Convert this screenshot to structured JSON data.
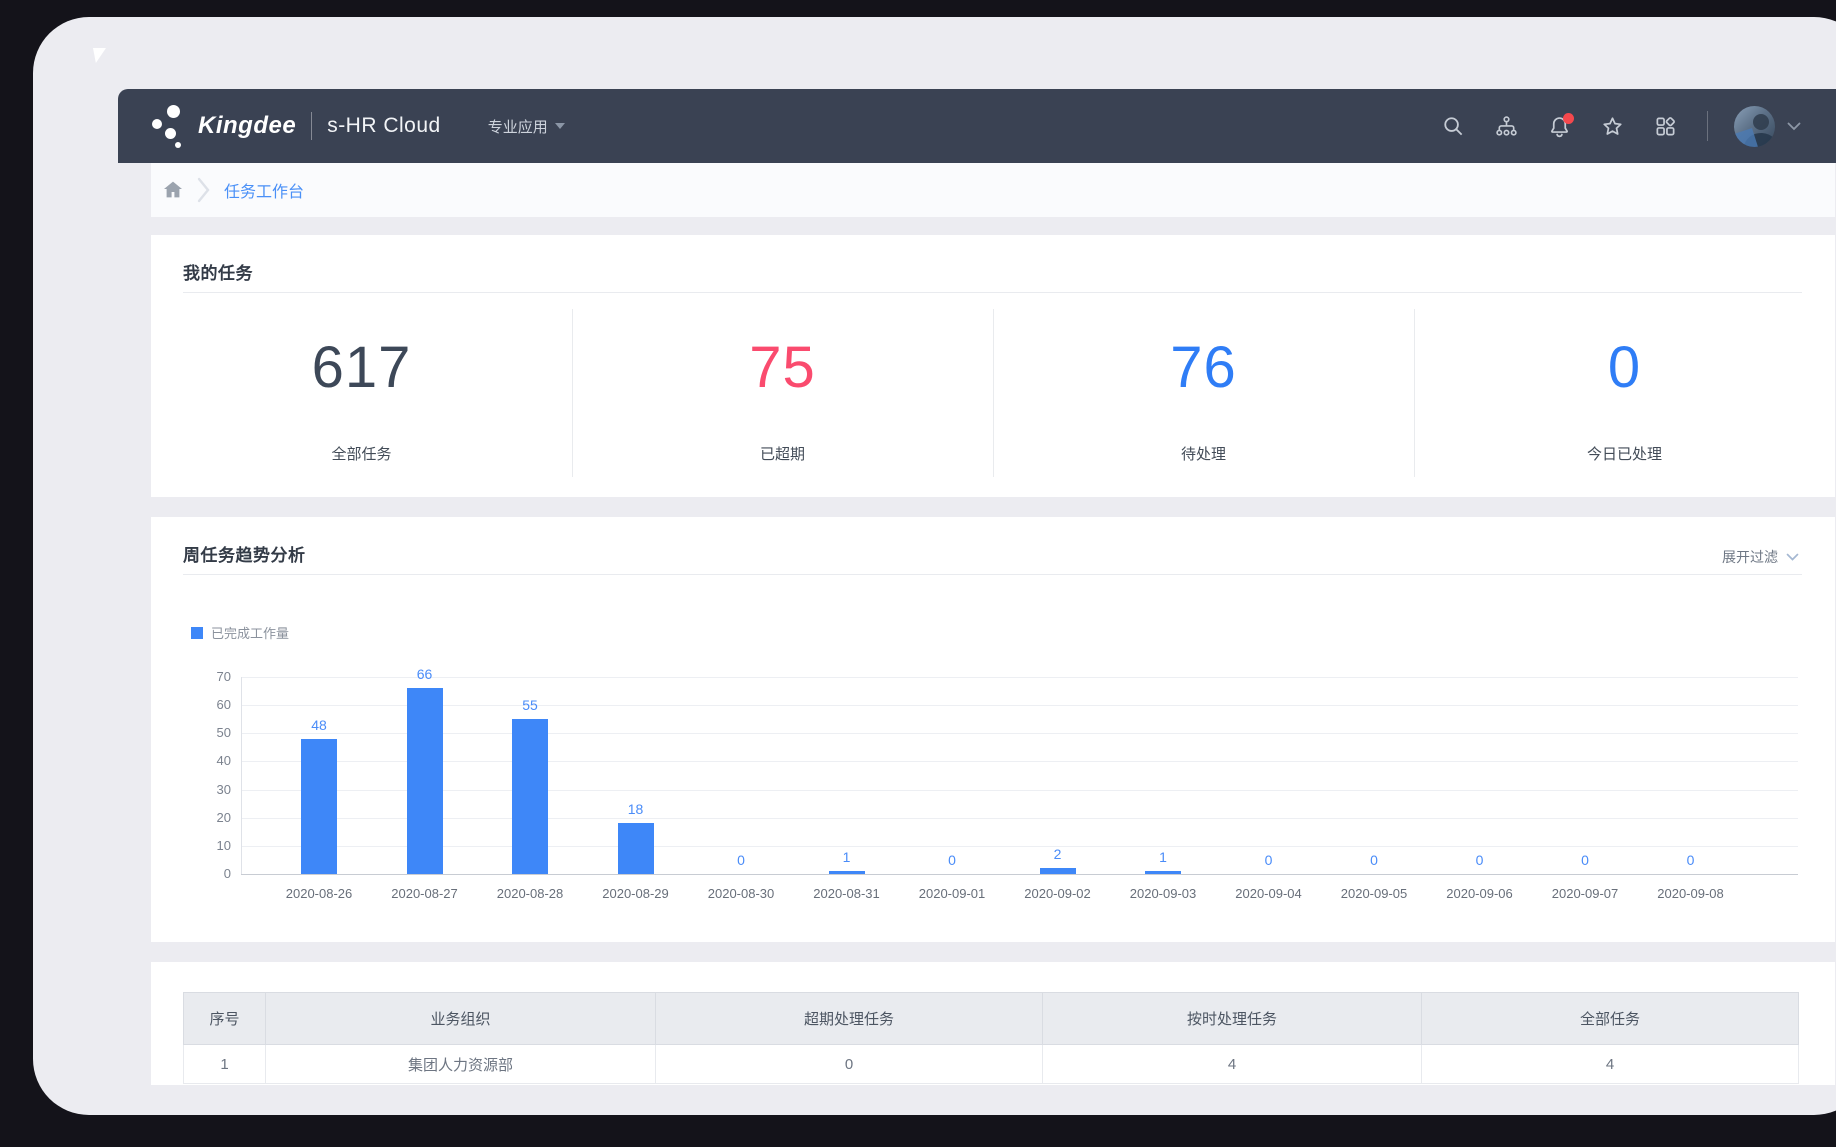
{
  "navbar": {
    "brand": "Kingdee",
    "product": "s-HR Cloud",
    "menu_label": "专业应用",
    "icons": [
      "search",
      "org-chart",
      "notifications",
      "favorites",
      "app-launcher"
    ],
    "notification_badge_color": "#f5484d",
    "bg_color": "#3a4253"
  },
  "breadcrumb": {
    "home_icon": "home",
    "current": "任务工作台",
    "link_color": "#4a90f7"
  },
  "my_tasks": {
    "title": "我的任务",
    "stats": [
      {
        "value": "617",
        "label": "全部任务",
        "color": "#3d4858"
      },
      {
        "value": "75",
        "label": "已超期",
        "color": "#fa4b6e"
      },
      {
        "value": "76",
        "label": "待处理",
        "color": "#2f7df6"
      },
      {
        "value": "0",
        "label": "今日已处理",
        "color": "#2f7df6"
      }
    ]
  },
  "trend_section": {
    "title": "周任务趋势分析",
    "filter_label": "展开过滤"
  },
  "chart_data": {
    "type": "bar",
    "title": "周任务趋势分析",
    "legend": [
      "已完成工作量"
    ],
    "legend_position": "top-left",
    "categories": [
      "2020-08-26",
      "2020-08-27",
      "2020-08-28",
      "2020-08-29",
      "2020-08-30",
      "2020-08-31",
      "2020-09-01",
      "2020-09-02",
      "2020-09-03",
      "2020-09-04",
      "2020-09-05",
      "2020-09-06",
      "2020-09-07",
      "2020-09-08"
    ],
    "values": [
      48,
      66,
      55,
      18,
      0,
      1,
      0,
      2,
      1,
      0,
      0,
      0,
      0,
      0
    ],
    "xlabel": "",
    "ylabel": "",
    "ylim": [
      0,
      70
    ],
    "yticks": [
      0,
      10,
      20,
      30,
      40,
      50,
      60,
      70
    ],
    "grid": true,
    "bar_color": "#3e87f8",
    "value_label_color": "#4a8cf8"
  },
  "org_table": {
    "headers": [
      "序号",
      "业务组织",
      "超期处理任务",
      "按时处理任务",
      "全部任务"
    ],
    "rows": [
      [
        "1",
        "集团人力资源部",
        "0",
        "4",
        "4"
      ]
    ]
  }
}
